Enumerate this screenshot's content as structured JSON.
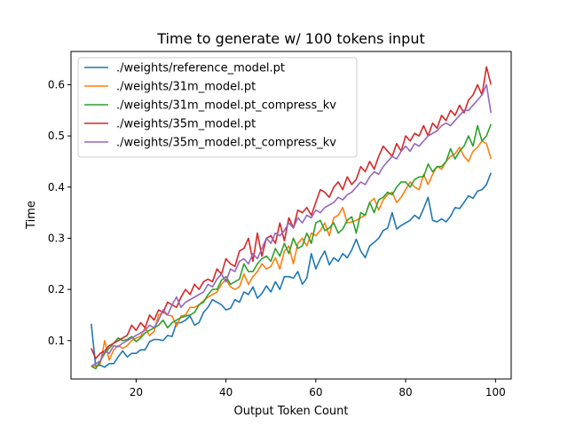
{
  "chart_data": {
    "type": "line",
    "title": "Time to generate w/ 100 tokens input",
    "xlabel": "Output Token Count",
    "ylabel": "Time",
    "xlim": [
      5.5,
      103.5
    ],
    "ylim": [
      0.025,
      0.665
    ],
    "xticks": [
      20,
      40,
      60,
      80,
      100
    ],
    "yticks": [
      0.1,
      0.2,
      0.3,
      0.4,
      0.5,
      0.6
    ],
    "grid": false,
    "legend_position": "top-left",
    "x_start": 10,
    "x_step": 1,
    "series": [
      {
        "name": "./weights/reference_model.pt",
        "color": "#1f77b4",
        "values": [
          0.133,
          0.05,
          0.052,
          0.048,
          0.055,
          0.055,
          0.068,
          0.08,
          0.068,
          0.075,
          0.075,
          0.082,
          0.082,
          0.098,
          0.102,
          0.102,
          0.1,
          0.11,
          0.108,
          0.135,
          0.135,
          0.14,
          0.148,
          0.13,
          0.135,
          0.155,
          0.165,
          0.18,
          0.175,
          0.17,
          0.16,
          0.163,
          0.18,
          0.175,
          0.195,
          0.19,
          0.205,
          0.183,
          0.192,
          0.207,
          0.195,
          0.215,
          0.2,
          0.225,
          0.225,
          0.222,
          0.235,
          0.21,
          0.222,
          0.27,
          0.24,
          0.26,
          0.275,
          0.248,
          0.262,
          0.255,
          0.27,
          0.262,
          0.277,
          0.298,
          0.275,
          0.262,
          0.285,
          0.292,
          0.3,
          0.315,
          0.32,
          0.35,
          0.318,
          0.325,
          0.33,
          0.335,
          0.345,
          0.338,
          0.358,
          0.38,
          0.335,
          0.332,
          0.338,
          0.332,
          0.343,
          0.36,
          0.358,
          0.37,
          0.383,
          0.378,
          0.392,
          0.395,
          0.405,
          0.428
        ]
      },
      {
        "name": "./weights/31m_model.pt",
        "color": "#ff7f0e",
        "values": [
          0.05,
          0.05,
          0.055,
          0.1,
          0.062,
          0.082,
          0.09,
          0.085,
          0.09,
          0.1,
          0.105,
          0.108,
          0.125,
          0.11,
          0.118,
          0.15,
          0.155,
          0.15,
          0.148,
          0.128,
          0.148,
          0.15,
          0.165,
          0.165,
          0.17,
          0.178,
          0.185,
          0.19,
          0.195,
          0.21,
          0.22,
          0.205,
          0.2,
          0.205,
          0.23,
          0.21,
          0.225,
          0.235,
          0.25,
          0.24,
          0.245,
          0.262,
          0.24,
          0.275,
          0.285,
          0.25,
          0.29,
          0.3,
          0.285,
          0.31,
          0.305,
          0.315,
          0.33,
          0.305,
          0.34,
          0.345,
          0.36,
          0.33,
          0.332,
          0.335,
          0.34,
          0.345,
          0.37,
          0.378,
          0.355,
          0.375,
          0.385,
          0.39,
          0.37,
          0.38,
          0.395,
          0.41,
          0.4,
          0.395,
          0.425,
          0.405,
          0.425,
          0.44,
          0.435,
          0.45,
          0.46,
          0.465,
          0.478,
          0.46,
          0.45,
          0.47,
          0.478,
          0.49,
          0.485,
          0.455
        ]
      },
      {
        "name": "./weights/31m_model.pt_compress_kv",
        "color": "#2ca02c",
        "values": [
          0.05,
          0.045,
          0.06,
          0.075,
          0.085,
          0.095,
          0.105,
          0.1,
          0.102,
          0.108,
          0.098,
          0.105,
          0.115,
          0.12,
          0.125,
          0.13,
          0.14,
          0.125,
          0.135,
          0.14,
          0.145,
          0.148,
          0.15,
          0.155,
          0.17,
          0.175,
          0.19,
          0.2,
          0.2,
          0.218,
          0.225,
          0.21,
          0.215,
          0.22,
          0.25,
          0.235,
          0.235,
          0.25,
          0.26,
          0.265,
          0.255,
          0.28,
          0.265,
          0.29,
          0.27,
          0.3,
          0.28,
          0.285,
          0.31,
          0.29,
          0.33,
          0.335,
          0.315,
          0.32,
          0.33,
          0.31,
          0.318,
          0.335,
          0.342,
          0.31,
          0.35,
          0.345,
          0.37,
          0.35,
          0.375,
          0.38,
          0.39,
          0.385,
          0.4,
          0.41,
          0.41,
          0.4,
          0.415,
          0.42,
          0.42,
          0.445,
          0.43,
          0.44,
          0.44,
          0.45,
          0.475,
          0.455,
          0.47,
          0.48,
          0.5,
          0.48,
          0.52,
          0.49,
          0.5,
          0.523
        ]
      },
      {
        "name": "./weights/35m_model.pt",
        "color": "#d62728",
        "values": [
          0.085,
          0.065,
          0.075,
          0.08,
          0.09,
          0.095,
          0.1,
          0.105,
          0.11,
          0.13,
          0.12,
          0.135,
          0.125,
          0.15,
          0.14,
          0.16,
          0.155,
          0.175,
          0.17,
          0.165,
          0.185,
          0.2,
          0.19,
          0.21,
          0.2,
          0.215,
          0.22,
          0.215,
          0.24,
          0.23,
          0.26,
          0.25,
          0.245,
          0.275,
          0.28,
          0.3,
          0.255,
          0.31,
          0.265,
          0.3,
          0.305,
          0.29,
          0.33,
          0.295,
          0.34,
          0.32,
          0.355,
          0.35,
          0.36,
          0.345,
          0.37,
          0.395,
          0.39,
          0.38,
          0.4,
          0.41,
          0.395,
          0.42,
          0.405,
          0.415,
          0.44,
          0.43,
          0.45,
          0.435,
          0.46,
          0.48,
          0.47,
          0.46,
          0.485,
          0.47,
          0.5,
          0.49,
          0.505,
          0.5,
          0.52,
          0.5,
          0.525,
          0.515,
          0.54,
          0.53,
          0.55,
          0.54,
          0.56,
          0.545,
          0.57,
          0.58,
          0.6,
          0.58,
          0.635,
          0.6
        ]
      },
      {
        "name": "./weights/35m_model.pt_compress_kv",
        "color": "#9467bd",
        "values": [
          0.05,
          0.055,
          0.06,
          0.08,
          0.075,
          0.09,
          0.088,
          0.095,
          0.1,
          0.105,
          0.11,
          0.115,
          0.12,
          0.13,
          0.125,
          0.14,
          0.16,
          0.15,
          0.17,
          0.185,
          0.165,
          0.175,
          0.18,
          0.185,
          0.19,
          0.195,
          0.21,
          0.205,
          0.22,
          0.23,
          0.215,
          0.24,
          0.235,
          0.255,
          0.26,
          0.25,
          0.27,
          0.26,
          0.28,
          0.3,
          0.29,
          0.31,
          0.305,
          0.315,
          0.33,
          0.32,
          0.34,
          0.33,
          0.345,
          0.34,
          0.355,
          0.35,
          0.36,
          0.365,
          0.37,
          0.38,
          0.375,
          0.385,
          0.39,
          0.4,
          0.41,
          0.405,
          0.42,
          0.43,
          0.425,
          0.44,
          0.45,
          0.46,
          0.455,
          0.47,
          0.48,
          0.47,
          0.485,
          0.48,
          0.49,
          0.5,
          0.505,
          0.51,
          0.52,
          0.525,
          0.52,
          0.53,
          0.54,
          0.55,
          0.55,
          0.56,
          0.57,
          0.58,
          0.6,
          0.545
        ]
      }
    ]
  }
}
